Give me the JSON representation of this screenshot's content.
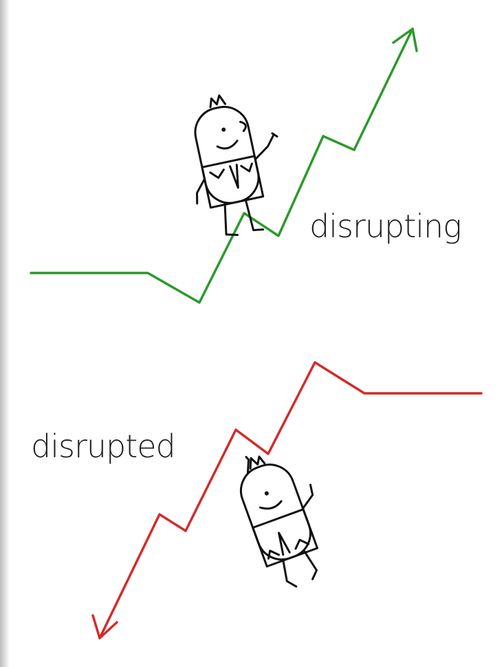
{
  "labels": {
    "top": "disrupting",
    "bottom": "disrupted"
  }
}
